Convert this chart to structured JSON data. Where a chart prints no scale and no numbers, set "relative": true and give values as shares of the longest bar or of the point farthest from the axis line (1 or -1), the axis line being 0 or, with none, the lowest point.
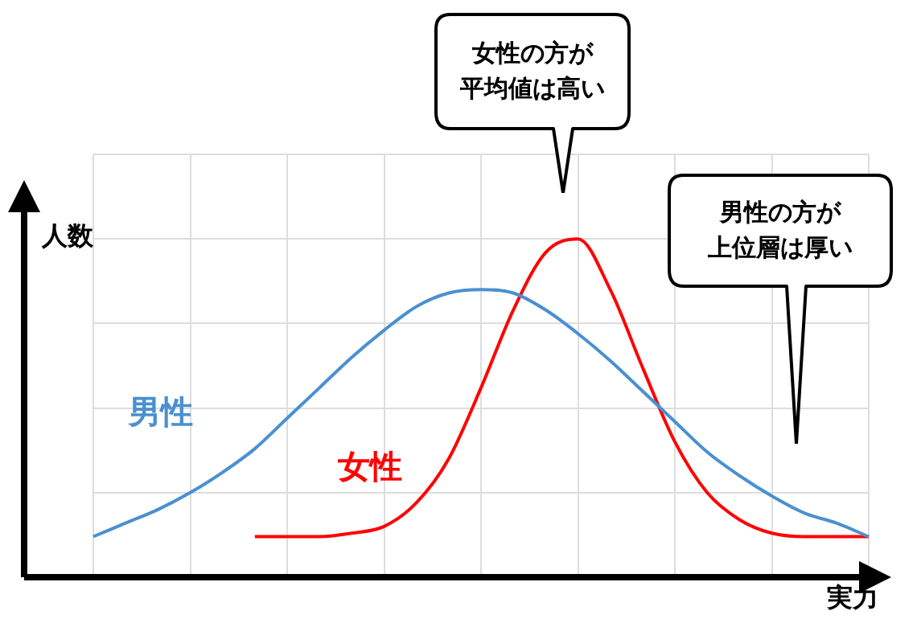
{
  "chart_data": {
    "type": "line",
    "relative": true,
    "xlabel": "実力",
    "ylabel": "人数",
    "grid": true,
    "legend": false,
    "marker": "none",
    "line_style": "solid",
    "categories": [
      null,
      null,
      null,
      null,
      null,
      null,
      null,
      null,
      null,
      null,
      null,
      null,
      null,
      null,
      null,
      null,
      null,
      null,
      null,
      null,
      null,
      null,
      null,
      null,
      null
    ],
    "series": [
      {
        "name": "男性",
        "color": "#4a90d0",
        "values": [
          0.12,
          0.16,
          0.2,
          0.25,
          0.31,
          0.38,
          0.47,
          0.56,
          0.65,
          0.73,
          0.8,
          0.84,
          0.85,
          0.84,
          0.79,
          0.72,
          0.64,
          0.55,
          0.46,
          0.37,
          0.3,
          0.24,
          0.19,
          0.16,
          0.12
        ]
      },
      {
        "name": "女性",
        "color": "#ff0000",
        "values": [
          null,
          null,
          null,
          null,
          null,
          0.12,
          0.12,
          0.12,
          0.13,
          0.15,
          0.22,
          0.35,
          0.56,
          0.79,
          0.96,
          1,
          0.85,
          0.62,
          0.4,
          0.25,
          0.17,
          0.13,
          0.12,
          0.12,
          0.12
        ]
      }
    ],
    "annotations": [
      "女性の方が平均値は高い",
      "男性の方が上位層は厚い"
    ]
  }
}
